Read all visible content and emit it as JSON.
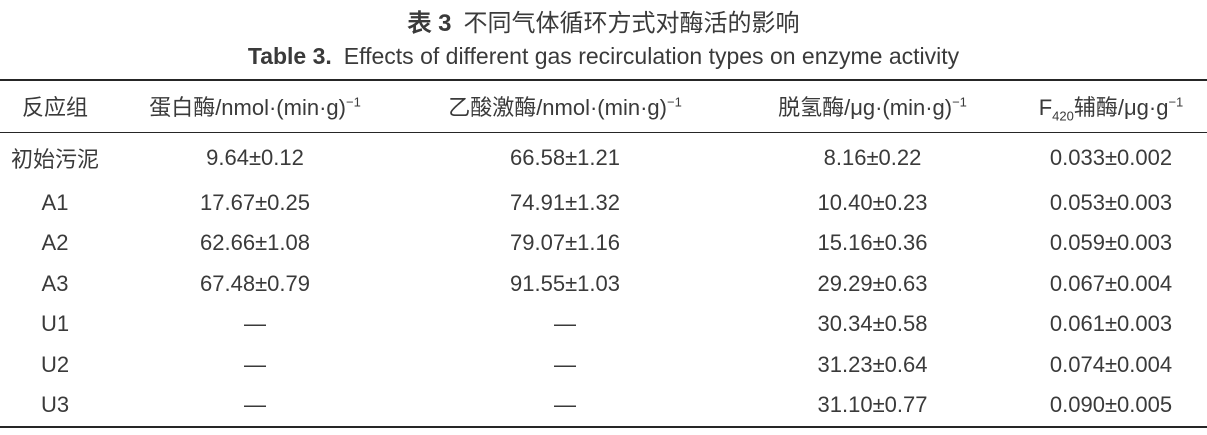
{
  "page": {
    "background": "#ffffff",
    "text_color": "#3a3a3a",
    "rule_color": "#262626"
  },
  "title": {
    "zh": {
      "prefix": "表 3",
      "text": "不同气体循环方式对酶活的影响"
    },
    "en": {
      "prefix": "Table 3.",
      "text": "Effects of different gas recirculation types on enzyme activity"
    }
  },
  "table": {
    "columns": [
      {
        "key": "group",
        "segments": [
          {
            "t": "反应组"
          }
        ]
      },
      {
        "key": "protease",
        "segments": [
          {
            "t": "蛋白酶/nmol·(min·g)"
          },
          {
            "t": "−1",
            "s": "sup"
          }
        ]
      },
      {
        "key": "acetate_kinase",
        "segments": [
          {
            "t": "乙酸激酶/nmol·(min·g)"
          },
          {
            "t": "−1",
            "s": "sup"
          }
        ]
      },
      {
        "key": "dehydrogenase",
        "segments": [
          {
            "t": "脱氢酶/μg·(min·g)"
          },
          {
            "t": "−1",
            "s": "sup"
          }
        ]
      },
      {
        "key": "coenzyme_f420",
        "segments": [
          {
            "t": "F"
          },
          {
            "t": "420",
            "s": "sub"
          },
          {
            "t": "辅酶/μg·g"
          },
          {
            "t": "−1",
            "s": "sup"
          }
        ]
      }
    ],
    "rows": [
      {
        "group": "初始污泥",
        "protease": "9.64±0.12",
        "acetate_kinase": "66.58±1.21",
        "dehydrogenase": "8.16±0.22",
        "coenzyme_f420": "0.033±0.002"
      },
      {
        "group": "A1",
        "protease": "17.67±0.25",
        "acetate_kinase": "74.91±1.32",
        "dehydrogenase": "10.40±0.23",
        "coenzyme_f420": "0.053±0.003"
      },
      {
        "group": "A2",
        "protease": "62.66±1.08",
        "acetate_kinase": "79.07±1.16",
        "dehydrogenase": "15.16±0.36",
        "coenzyme_f420": "0.059±0.003"
      },
      {
        "group": "A3",
        "protease": "67.48±0.79",
        "acetate_kinase": "91.55±1.03",
        "dehydrogenase": "29.29±0.63",
        "coenzyme_f420": "0.067±0.004"
      },
      {
        "group": "U1",
        "protease": "—",
        "acetate_kinase": "—",
        "dehydrogenase": "30.34±0.58",
        "coenzyme_f420": "0.061±0.003"
      },
      {
        "group": "U2",
        "protease": "—",
        "acetate_kinase": "—",
        "dehydrogenase": "31.23±0.64",
        "coenzyme_f420": "0.074±0.004"
      },
      {
        "group": "U3",
        "protease": "—",
        "acetate_kinase": "—",
        "dehydrogenase": "31.10±0.77",
        "coenzyme_f420": "0.090±0.005"
      }
    ]
  }
}
